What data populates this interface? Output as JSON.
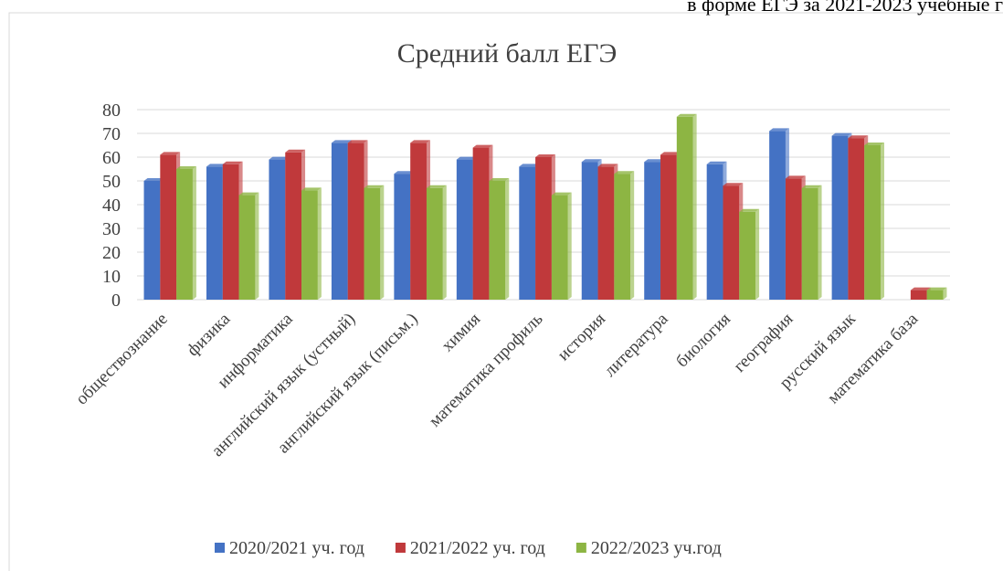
{
  "chart_data": {
    "type": "bar",
    "header_note": "в форме ЕГЭ за 2021-2023 учебные г",
    "title": "Средний балл ЕГЭ",
    "categories": [
      "обществознание",
      "физика",
      "информатика",
      "английский язык (устный)",
      "английский язык (письм.)",
      "химия",
      "математика профиль",
      "история",
      "литература",
      "биология",
      "география",
      "русский язык",
      "математика база"
    ],
    "series": [
      {
        "name": "2020/2021 уч. год",
        "color": "#4472c4",
        "values": [
          50,
          56,
          59,
          66,
          53,
          59,
          56,
          58,
          58,
          57,
          71,
          69,
          null
        ]
      },
      {
        "name": "2021/2022 уч. год",
        "color": "#c0393b",
        "values": [
          61,
          57,
          62,
          66,
          66,
          64,
          60,
          56,
          61,
          48,
          51,
          68,
          4
        ]
      },
      {
        "name": "2022/2023 уч.год",
        "color": "#8db543",
        "values": [
          55,
          44,
          46,
          47,
          47,
          50,
          44,
          53,
          77,
          37,
          47,
          65,
          4
        ]
      }
    ],
    "ylim": [
      0,
      80
    ],
    "yticks": [
      0,
      10,
      20,
      30,
      40,
      50,
      60,
      70,
      80
    ],
    "grid": true,
    "legend": "bottom"
  }
}
